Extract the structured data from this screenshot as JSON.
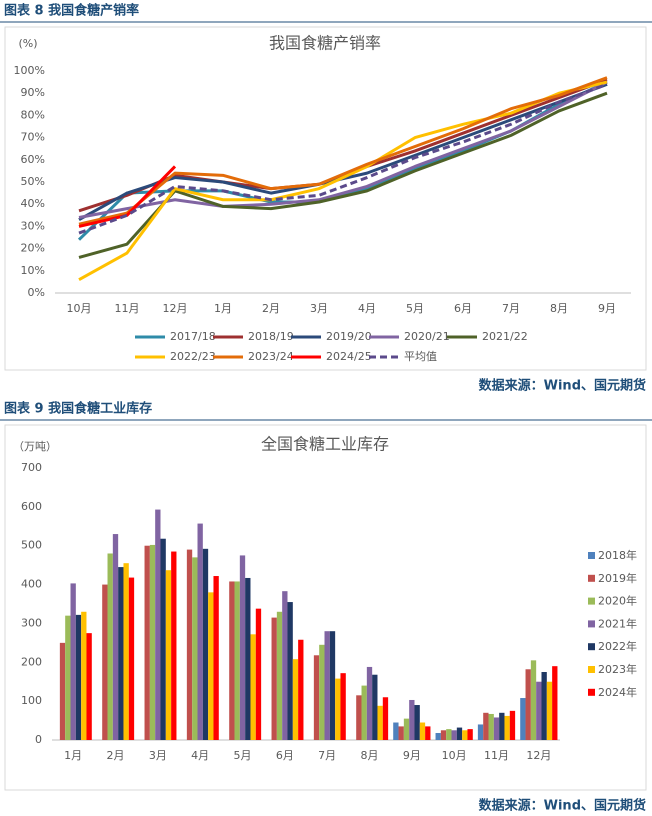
{
  "captions": [
    "图表 8  我国食糖产销率",
    "图表 9  我国食糖工业库存"
  ],
  "sources": [
    "数据来源：Wind、国元期货",
    "数据来源：Wind、国元期货"
  ],
  "chart_data": [
    {
      "type": "line",
      "title": "我国食糖产销率",
      "y_axis_label": "(%)",
      "categories": [
        "10月",
        "11月",
        "12月",
        "1月",
        "2月",
        "3月",
        "4月",
        "5月",
        "6月",
        "7月",
        "8月",
        "9月"
      ],
      "ylim": [
        0,
        100
      ],
      "yticks": [
        {
          "value": 0,
          "label": "0%"
        },
        {
          "value": 10,
          "label": "10%"
        },
        {
          "value": 20,
          "label": "20%"
        },
        {
          "value": 30,
          "label": "30%"
        },
        {
          "value": 40,
          "label": "40%"
        },
        {
          "value": 50,
          "label": "50%"
        },
        {
          "value": 60,
          "label": "60%"
        },
        {
          "value": 70,
          "label": "70%"
        },
        {
          "value": 80,
          "label": "80%"
        },
        {
          "value": 90,
          "label": "90%"
        },
        {
          "value": 100,
          "label": "100%"
        }
      ],
      "grid": false,
      "legend": "bottom",
      "series": [
        {
          "name": "2017/18",
          "color": "#2e8ba8",
          "values": [
            24,
            45,
            46,
            46,
            41,
            41,
            47,
            56,
            64,
            73,
            85,
            95
          ]
        },
        {
          "name": "2018/19",
          "color": "#9e3030",
          "values": [
            37,
            44,
            53,
            50,
            47,
            49,
            57,
            64,
            72,
            80,
            88,
            96
          ]
        },
        {
          "name": "2019/20",
          "color": "#2b4a7a",
          "values": [
            33,
            45,
            52,
            50,
            45,
            49,
            54,
            62,
            70,
            78,
            86,
            94
          ]
        },
        {
          "name": "2020/21",
          "color": "#8064a2",
          "values": [
            34,
            38,
            42,
            39,
            40,
            42,
            48,
            57,
            65,
            73,
            84,
            95
          ]
        },
        {
          "name": "2021/22",
          "color": "#4f6228",
          "values": [
            16,
            22,
            46,
            39,
            38,
            41,
            46,
            55,
            63,
            71,
            82,
            90
          ]
        },
        {
          "name": "2022/23",
          "color": "#ffc000",
          "values": [
            6,
            18,
            47,
            42,
            42,
            47,
            57,
            70,
            76,
            81,
            90,
            95
          ]
        },
        {
          "name": "2023/24",
          "color": "#e36c09",
          "values": [
            31,
            36,
            54,
            53,
            47,
            49,
            58,
            66,
            74,
            83,
            89,
            97
          ]
        },
        {
          "name": "2024/25",
          "color": "#ff0000",
          "values": [
            30,
            35,
            57,
            null,
            null,
            null,
            null,
            null,
            null,
            null,
            null,
            null
          ]
        },
        {
          "name": "平均值",
          "color": "#5b4a8b",
          "dashed": true,
          "values": [
            27,
            35,
            48,
            46,
            42,
            44,
            52,
            61,
            68,
            76,
            86,
            94
          ]
        }
      ]
    },
    {
      "type": "bar",
      "title": "全国食糖工业库存",
      "y_axis_label": "（万吨）",
      "categories": [
        "1月",
        "2月",
        "3月",
        "4月",
        "5月",
        "6月",
        "7月",
        "8月",
        "9月",
        "10月",
        "11月",
        "12月"
      ],
      "ylim": [
        0,
        700
      ],
      "yticks": [
        0,
        100,
        200,
        300,
        400,
        500,
        600,
        700
      ],
      "grid": false,
      "legend": "right",
      "series": [
        {
          "name": "2018年",
          "color": "#4f81bd",
          "values": [
            null,
            null,
            null,
            null,
            null,
            null,
            null,
            null,
            45,
            18,
            40,
            108
          ]
        },
        {
          "name": "2019年",
          "color": "#c0504d",
          "values": [
            250,
            400,
            500,
            490,
            408,
            315,
            218,
            115,
            35,
            25,
            70,
            182
          ]
        },
        {
          "name": "2020年",
          "color": "#9bbb59",
          "values": [
            320,
            480,
            502,
            470,
            408,
            330,
            245,
            140,
            55,
            28,
            67,
            205
          ]
        },
        {
          "name": "2021年",
          "color": "#8064a2",
          "values": [
            403,
            530,
            593,
            557,
            475,
            383,
            280,
            188,
            103,
            25,
            58,
            150
          ]
        },
        {
          "name": "2022年",
          "color": "#1f3864",
          "values": [
            322,
            445,
            518,
            492,
            417,
            355,
            280,
            168,
            90,
            32,
            70,
            175
          ]
        },
        {
          "name": "2023年",
          "color": "#ffc000",
          "values": [
            330,
            455,
            437,
            380,
            272,
            208,
            158,
            88,
            45,
            25,
            62,
            150
          ]
        },
        {
          "name": "2024年",
          "color": "#ff0000",
          "values": [
            275,
            418,
            485,
            422,
            338,
            258,
            172,
            110,
            35,
            28,
            75,
            190
          ]
        }
      ]
    }
  ]
}
